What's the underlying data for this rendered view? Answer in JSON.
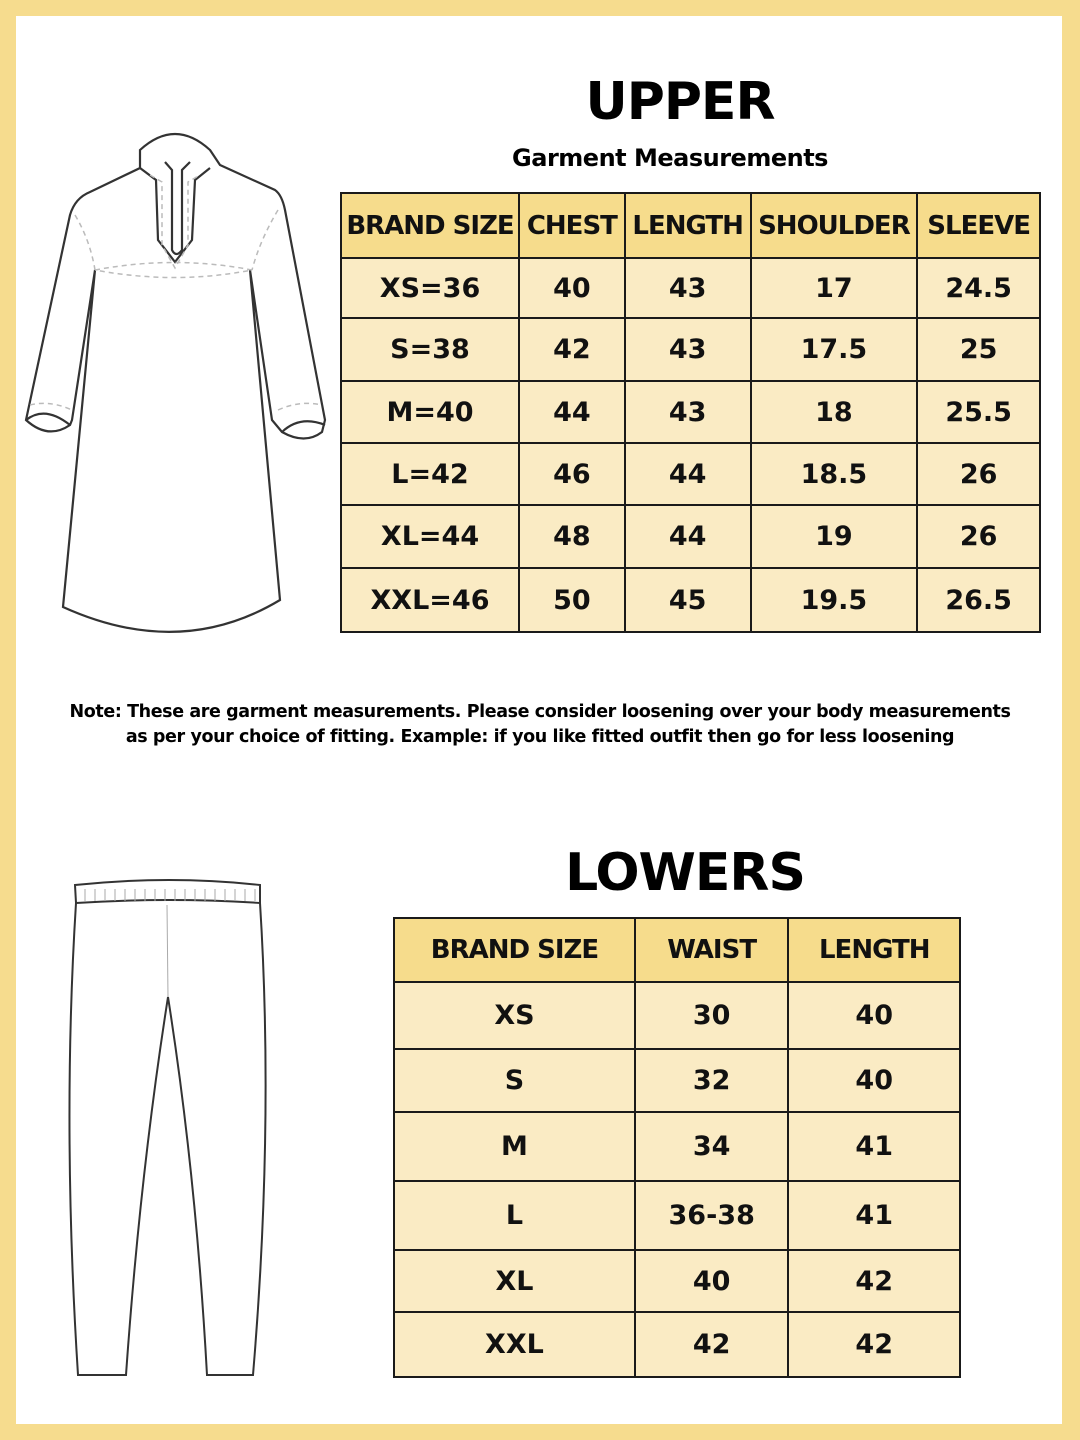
{
  "upper": {
    "title": "UPPER",
    "subtitle": "Garment Measurements",
    "headers": [
      "BRAND SIZE",
      "CHEST",
      "LENGTH",
      "SHOULDER",
      "SLEEVE"
    ],
    "rows": [
      [
        "XS=36",
        "40",
        "43",
        "17",
        "24.5"
      ],
      [
        "S=38",
        "42",
        "43",
        "17.5",
        "25"
      ],
      [
        "M=40",
        "44",
        "43",
        "18",
        "25.5"
      ],
      [
        "L=42",
        "46",
        "44",
        "18.5",
        "26"
      ],
      [
        "XL=44",
        "48",
        "44",
        "19",
        "26"
      ],
      [
        "XXL=46",
        "50",
        "45",
        "19.5",
        "26.5"
      ]
    ]
  },
  "note": {
    "line1": "Note: These are garment measurements. Please consider loosening over your body measurements",
    "line2": "as per your choice of fitting. Example: if you like fitted outfit then go for less loosening"
  },
  "lowers": {
    "title": "LOWERS",
    "headers": [
      "BRAND SIZE",
      "WAIST",
      "LENGTH"
    ],
    "rows": [
      [
        "XS",
        "30",
        "40"
      ],
      [
        "S",
        "32",
        "40"
      ],
      [
        "M",
        "34",
        "41"
      ],
      [
        "L",
        "36-38",
        "41"
      ],
      [
        "XL",
        "40",
        "42"
      ],
      [
        "XXL",
        "42",
        "42"
      ]
    ]
  },
  "colors": {
    "frame": "#f6dc8e",
    "header": "#f6dc8c",
    "cell": "#faebc4"
  }
}
